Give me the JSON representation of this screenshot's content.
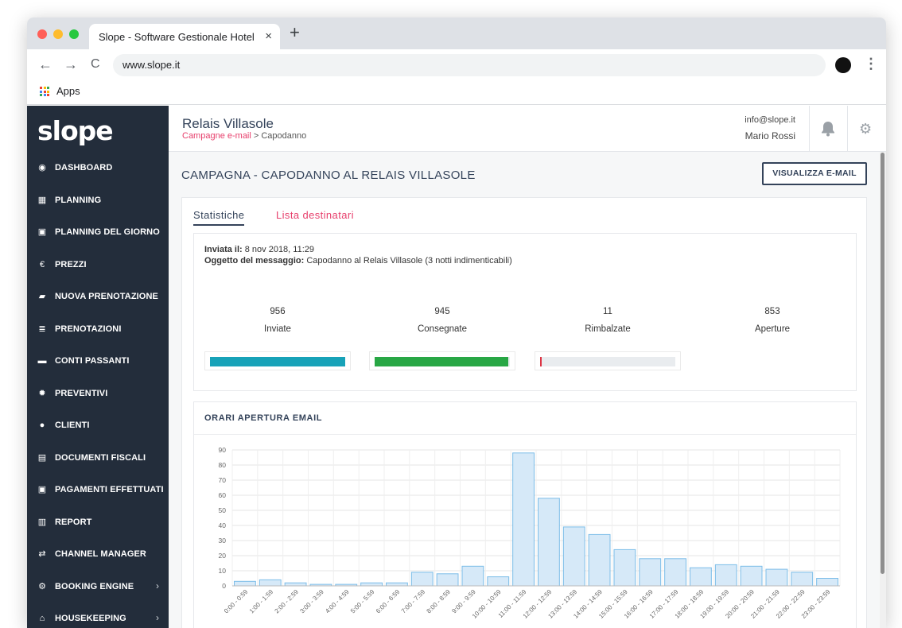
{
  "browser": {
    "tab_title": "Slope - Software Gestionale Hotel",
    "close_glyph": "×",
    "new_tab_glyph": "+",
    "url": "www.slope.it",
    "back_glyph": "←",
    "forward_glyph": "→",
    "reload_glyph": "C",
    "menu_glyph": "⋮",
    "bookmarks": {
      "apps_label": "Apps"
    }
  },
  "sidebar": {
    "logo": "slope",
    "items": [
      {
        "label": "DASHBOARD",
        "icon": "dashboard-icon",
        "glyph": "◉"
      },
      {
        "label": "PLANNING",
        "icon": "calendar-icon",
        "glyph": "▦"
      },
      {
        "label": "PLANNING DEL GIORNO",
        "icon": "calendar-check-icon",
        "glyph": "▣"
      },
      {
        "label": "PREZZI",
        "icon": "euro-icon",
        "glyph": "€"
      },
      {
        "label": "NUOVA PRENOTAZIONE",
        "icon": "book-icon",
        "glyph": "▰"
      },
      {
        "label": "PRENOTAZIONI",
        "icon": "list-icon",
        "glyph": "≣"
      },
      {
        "label": "CONTI PASSANTI",
        "icon": "briefcase-icon",
        "glyph": "▬"
      },
      {
        "label": "PREVENTIVI",
        "icon": "badge-icon",
        "glyph": "✹"
      },
      {
        "label": "CLIENTI",
        "icon": "users-icon",
        "glyph": "●"
      },
      {
        "label": "DOCUMENTI FISCALI",
        "icon": "archive-icon",
        "glyph": "▤"
      },
      {
        "label": "PAGAMENTI EFFETTUATI",
        "icon": "money-icon",
        "glyph": "▣"
      },
      {
        "label": "REPORT",
        "icon": "bar-chart-icon",
        "glyph": "▥"
      },
      {
        "label": "CHANNEL MANAGER",
        "icon": "exchange-icon",
        "glyph": "⇄"
      },
      {
        "label": "BOOKING ENGINE",
        "icon": "cogs-icon",
        "glyph": "⚙",
        "chevron": "›"
      },
      {
        "label": "HOUSEKEEPING",
        "icon": "home-icon",
        "glyph": "⌂",
        "chevron": "›"
      }
    ]
  },
  "header": {
    "hotel_name": "Relais Villasole",
    "breadcrumb_link": "Campagne e-mail",
    "breadcrumb_rest": " > Capodanno",
    "user_email": "info@slope.it",
    "user_name": "Mario Rossi",
    "bell_glyph": "🔔",
    "gear_glyph": "⚙"
  },
  "main": {
    "page_title": "CAMPAGNA - CAPODANNO AL RELAIS VILLASOLE",
    "view_email_button": "VISUALIZZA E-MAIL",
    "tabs": {
      "stats": "Statistiche",
      "recipients": "Lista destinatari"
    },
    "sent_label": "Inviata il:",
    "sent_value": " 8 nov 2018, 11:29",
    "subject_label": "Oggetto del messaggio:",
    "subject_value": " Capodanno al Relais Villasole (3 notti indimenticabili)",
    "stats": [
      {
        "value": "956",
        "label": "Inviate",
        "fill": 1.0,
        "color": "#17a2b8"
      },
      {
        "value": "945",
        "label": "Consegnate",
        "fill": 0.988,
        "color": "#28a745"
      },
      {
        "value": "11",
        "label": "Rimbalzate",
        "fill": 0.012,
        "color": "#dc3545"
      },
      {
        "value": "853",
        "label": "Aperture"
      }
    ],
    "chart_section_title": "ORARI APERTURA EMAIL"
  },
  "colors": {
    "sidebar_bg": "#232d3b",
    "accent_pink": "#e73f6c",
    "navy": "#34435a",
    "chart_bar_fill": "#d6e9f8",
    "chart_bar_stroke": "#7cbde8"
  },
  "chart_data": {
    "type": "bar",
    "title": "ORARI APERTURA EMAIL",
    "xlabel": "",
    "ylabel": "",
    "ylim": [
      0,
      90
    ],
    "yticks": [
      0,
      10,
      20,
      30,
      40,
      50,
      60,
      70,
      80,
      90
    ],
    "grid": true,
    "categories": [
      "0:00 - 0:59",
      "1:00 - 1:59",
      "2:00 - 2:59",
      "3:00 - 3:59",
      "4:00 - 4:59",
      "5:00 - 5:59",
      "6:00 - 6:59",
      "7:00 - 7:59",
      "8:00 - 8:59",
      "9:00 - 9:59",
      "10:00 - 10:59",
      "11:00 - 11:59",
      "12:00 - 12:59",
      "13:00 - 13:59",
      "14:00 - 14:59",
      "15:00 - 15:59",
      "16:00 - 16:59",
      "17:00 - 17:59",
      "18:00 - 18:59",
      "19:00 - 19:59",
      "20:00 - 20:59",
      "21:00 - 21:59",
      "22:00 - 22:59",
      "23:00 - 23:59"
    ],
    "values": [
      3,
      4,
      2,
      1,
      1,
      2,
      2,
      9,
      8,
      13,
      6,
      88,
      58,
      39,
      34,
      24,
      18,
      18,
      12,
      14,
      13,
      11,
      9,
      5
    ]
  }
}
